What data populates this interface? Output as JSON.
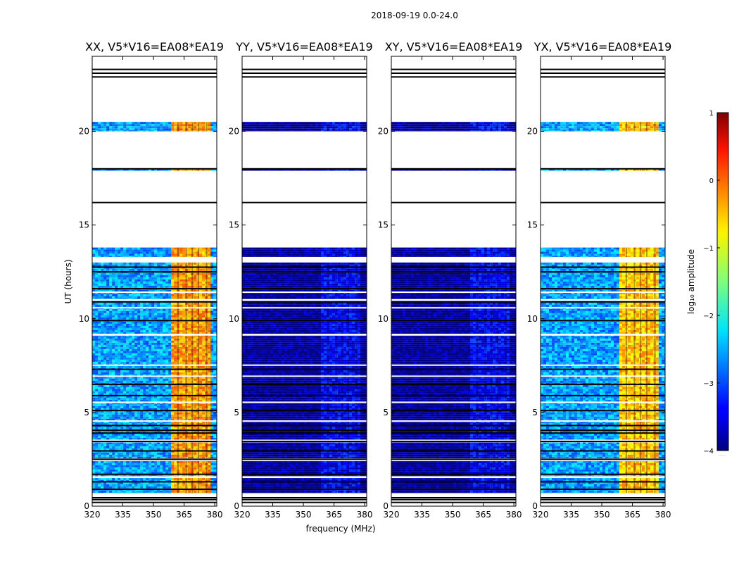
{
  "chart_data": {
    "type": "heatmap",
    "suptitle": "2018-09-19 0.0-24.0",
    "xlabel": "frequency (MHz)",
    "ylabel": "UT (hours)",
    "xlim": [
      320,
      381
    ],
    "ylim": [
      0,
      24
    ],
    "xticks": [
      320,
      335,
      350,
      365,
      380
    ],
    "yticks": [
      0,
      5,
      10,
      15,
      20
    ],
    "colorbar": {
      "label": "log₁₀ amplitude",
      "range": [
        -4,
        1
      ],
      "ticks": [
        1,
        0,
        -1,
        -2,
        -3,
        -4
      ],
      "colormap": "jet",
      "under_label": "......"
    },
    "rfi_band_mhz": [
      358,
      378
    ],
    "rfi_channels_mhz": [
      362,
      366,
      369,
      372,
      376
    ],
    "data_periods_hours": [
      [
        0.7,
        13.0
      ],
      [
        13.3,
        13.8
      ],
      [
        17.9,
        18.0
      ],
      [
        20.0,
        20.5
      ]
    ],
    "flagged_lines_hours": [
      0.2,
      0.35,
      0.45,
      0.9,
      1.3,
      1.7,
      2.5,
      2.95,
      3.45,
      3.9,
      4.05,
      4.3,
      5.1,
      5.9,
      6.5,
      7.3,
      9.9,
      10.9,
      11.6,
      12.5,
      12.75,
      16.2,
      18.0,
      22.9,
      23.1,
      23.3
    ],
    "white_gaps_hours": [
      [
        1.5,
        1.6
      ],
      [
        2.4,
        2.55
      ],
      [
        3.4,
        3.55
      ],
      [
        4.5,
        4.58
      ],
      [
        5.5,
        5.58
      ],
      [
        6.9,
        6.97
      ],
      [
        7.5,
        7.56
      ],
      [
        9.1,
        9.2
      ],
      [
        10.55,
        10.62
      ],
      [
        10.95,
        11.05
      ],
      [
        11.4,
        11.45
      ]
    ],
    "panels": [
      {
        "title": "XX, V5*V16=EA08*EA19",
        "base_log_amp": -2.6,
        "rfi_log_amp": -0.4,
        "show_ylabel": true,
        "show_xlabel": false
      },
      {
        "title": "YY, V5*V16=EA08*EA19",
        "base_log_amp": -3.95,
        "rfi_log_amp": -3.4,
        "show_ylabel": false,
        "show_xlabel": true
      },
      {
        "title": "XY, V5*V16=EA08*EA19",
        "base_log_amp": -3.95,
        "rfi_log_amp": -3.4,
        "show_ylabel": false,
        "show_xlabel": false
      },
      {
        "title": "YX, V5*V16=EA08*EA19",
        "base_log_amp": -2.6,
        "rfi_log_amp": -0.6,
        "show_ylabel": false,
        "show_xlabel": false
      }
    ]
  }
}
